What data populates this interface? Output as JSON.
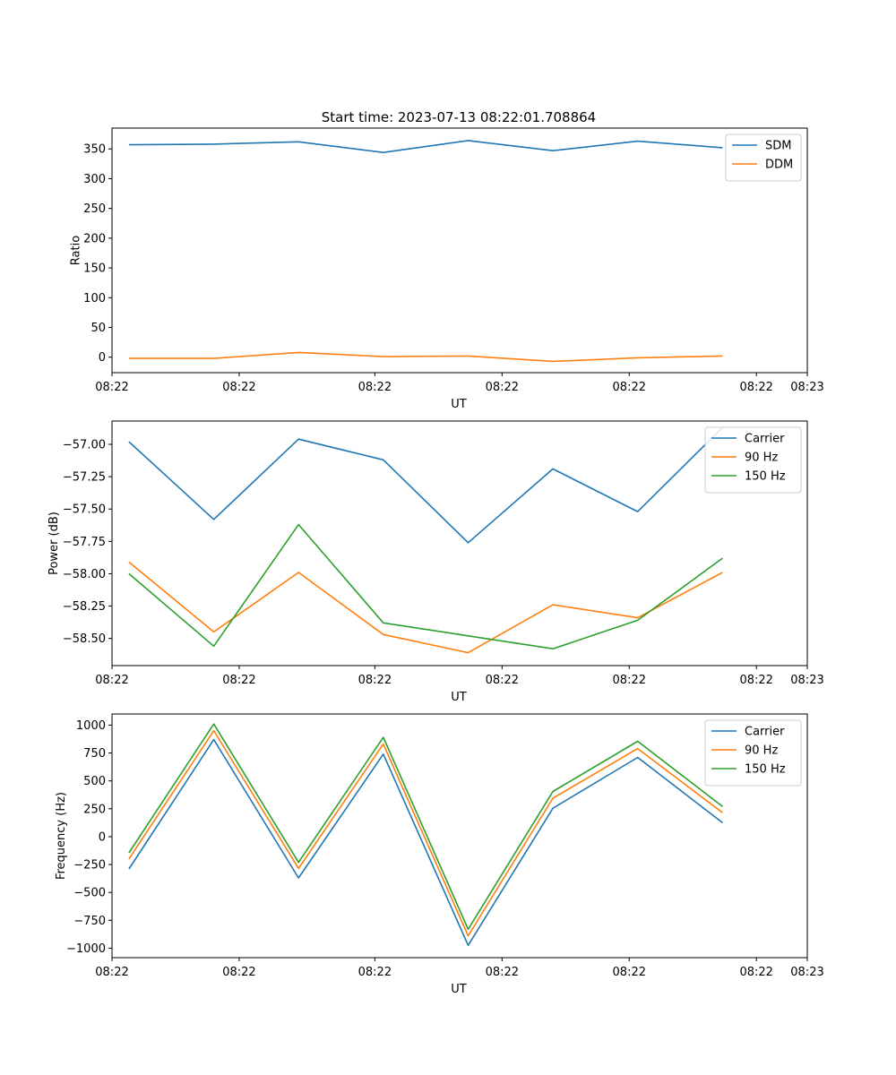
{
  "figure_title": "Start time: 2023-07-13 08:22:01.708864",
  "colors": {
    "blue": "#1f77b4",
    "orange": "#ff7f0e",
    "green": "#2ca02c"
  },
  "chart_data": [
    {
      "type": "line",
      "title": "Start time: 2023-07-13 08:22:01.708864",
      "xlabel": "UT",
      "ylabel": "Ratio",
      "x": [
        1,
        2,
        3,
        4,
        5,
        6,
        7,
        8
      ],
      "xlim": [
        0.8,
        9.0
      ],
      "x_ticks": [
        {
          "value": 0.8,
          "label": "08:22"
        },
        {
          "value": 2.3,
          "label": "08:22"
        },
        {
          "value": 3.9,
          "label": "08:22"
        },
        {
          "value": 5.4,
          "label": "08:22"
        },
        {
          "value": 6.9,
          "label": "08:22"
        },
        {
          "value": 8.4,
          "label": "08:22"
        },
        {
          "value": 9.0,
          "label": "08:23"
        }
      ],
      "ylim": [
        -26,
        385
      ],
      "y_ticks": [
        {
          "value": 0,
          "label": "0"
        },
        {
          "value": 50,
          "label": "50"
        },
        {
          "value": 100,
          "label": "100"
        },
        {
          "value": 150,
          "label": "150"
        },
        {
          "value": 200,
          "label": "200"
        },
        {
          "value": 250,
          "label": "250"
        },
        {
          "value": 300,
          "label": "300"
        },
        {
          "value": 350,
          "label": "350"
        }
      ],
      "legend_position": "top-right",
      "series": [
        {
          "name": "SDM",
          "color": "#1f77b4",
          "values": [
            357,
            358,
            362,
            344,
            364,
            347,
            363,
            352
          ]
        },
        {
          "name": "DDM",
          "color": "#ff7f0e",
          "values": [
            -2,
            -2,
            8,
            1,
            2,
            -7,
            -1,
            2
          ]
        }
      ]
    },
    {
      "type": "line",
      "title": "",
      "xlabel": "UT",
      "ylabel": "Power (dB)",
      "x": [
        1,
        2,
        3,
        4,
        5,
        6,
        7,
        8
      ],
      "xlim": [
        0.8,
        9.0
      ],
      "x_ticks": [
        {
          "value": 0.8,
          "label": "08:22"
        },
        {
          "value": 2.3,
          "label": "08:22"
        },
        {
          "value": 3.9,
          "label": "08:22"
        },
        {
          "value": 5.4,
          "label": "08:22"
        },
        {
          "value": 6.9,
          "label": "08:22"
        },
        {
          "value": 8.4,
          "label": "08:22"
        },
        {
          "value": 9.0,
          "label": "08:23"
        }
      ],
      "ylim": [
        -58.71,
        -56.82
      ],
      "y_ticks": [
        {
          "value": -58.5,
          "label": "−58.50"
        },
        {
          "value": -58.25,
          "label": "−58.25"
        },
        {
          "value": -58.0,
          "label": "−58.00"
        },
        {
          "value": -57.75,
          "label": "−57.75"
        },
        {
          "value": -57.5,
          "label": "−57.50"
        },
        {
          "value": -57.25,
          "label": "−57.25"
        },
        {
          "value": -57.0,
          "label": "−57.00"
        }
      ],
      "legend_position": "top-right",
      "series": [
        {
          "name": "Carrier",
          "color": "#1f77b4",
          "values": [
            -56.98,
            -57.58,
            -56.96,
            -57.12,
            -57.76,
            -57.19,
            -57.52,
            -56.87
          ]
        },
        {
          "name": "90 Hz",
          "color": "#ff7f0e",
          "values": [
            -57.91,
            -58.45,
            -57.99,
            -58.47,
            -58.61,
            -58.24,
            -58.34,
            -57.99
          ]
        },
        {
          "name": "150 Hz",
          "color": "#2ca02c",
          "values": [
            -58.0,
            -58.56,
            -57.62,
            -58.38,
            -58.48,
            -58.58,
            -58.36,
            -57.88
          ]
        }
      ]
    },
    {
      "type": "line",
      "title": "",
      "xlabel": "UT",
      "ylabel": "Frequency (Hz)",
      "x": [
        1,
        2,
        3,
        4,
        5,
        6,
        7,
        8
      ],
      "xlim": [
        0.8,
        9.0
      ],
      "x_ticks": [
        {
          "value": 0.8,
          "label": "08:22"
        },
        {
          "value": 2.3,
          "label": "08:22"
        },
        {
          "value": 3.9,
          "label": "08:22"
        },
        {
          "value": 5.4,
          "label": "08:22"
        },
        {
          "value": 6.9,
          "label": "08:22"
        },
        {
          "value": 8.4,
          "label": "08:22"
        },
        {
          "value": 9.0,
          "label": "08:23"
        }
      ],
      "ylim": [
        -1085,
        1100
      ],
      "y_ticks": [
        {
          "value": -1000,
          "label": "−1000"
        },
        {
          "value": -750,
          "label": "−750"
        },
        {
          "value": -500,
          "label": "−500"
        },
        {
          "value": -250,
          "label": "−250"
        },
        {
          "value": 0,
          "label": "0"
        },
        {
          "value": 250,
          "label": "250"
        },
        {
          "value": 500,
          "label": "500"
        },
        {
          "value": 750,
          "label": "750"
        },
        {
          "value": 1000,
          "label": "1000"
        }
      ],
      "legend_position": "top-right",
      "series": [
        {
          "name": "Carrier",
          "color": "#1f77b4",
          "values": [
            -290,
            870,
            -370,
            740,
            -975,
            255,
            710,
            125
          ]
        },
        {
          "name": "90 Hz",
          "color": "#ff7f0e",
          "values": [
            -200,
            950,
            -285,
            830,
            -890,
            345,
            790,
            215
          ]
        },
        {
          "name": "150 Hz",
          "color": "#2ca02c",
          "values": [
            -145,
            1010,
            -230,
            890,
            -830,
            405,
            855,
            270
          ]
        }
      ]
    }
  ]
}
